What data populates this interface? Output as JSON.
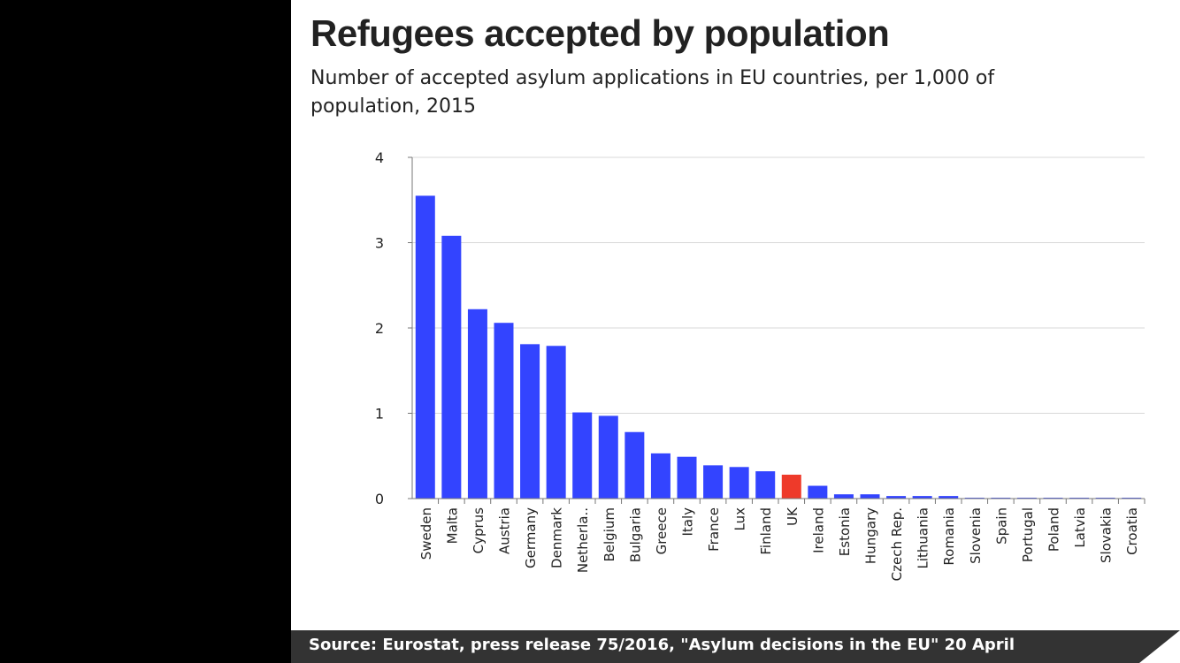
{
  "title": "Refugees accepted by population",
  "subtitle": "Number of accepted asylum applications in EU countries, per 1,000 of population, 2015",
  "source": {
    "label": "Source:",
    "text": "Eurostat, press release 75/2016, \"Asylum decisions in the EU\" 20 April"
  },
  "colors": {
    "default_bar": "#3344ff",
    "highlight_bar": "#ee3a2a",
    "grid": "#d8d8d8",
    "footer": "#333333"
  },
  "chart_data": {
    "type": "bar",
    "title": "Refugees accepted by population",
    "xlabel": "",
    "ylabel": "",
    "ylim": [
      0,
      4
    ],
    "yticks": [
      0,
      1,
      2,
      3,
      4
    ],
    "grid": true,
    "highlight": "UK",
    "categories": [
      "Sweden",
      "Malta",
      "Cyprus",
      "Austria",
      "Germany",
      "Denmark",
      "Netherla..",
      "Belgium",
      "Bulgaria",
      "Greece",
      "Italy",
      "France",
      "Lux",
      "Finland",
      "UK",
      "Ireland",
      "Estonia",
      "Hungary",
      "Czech Rep.",
      "Lithuania",
      "Romania",
      "Slovenia",
      "Spain",
      "Portugal",
      "Poland",
      "Latvia",
      "Slovakia",
      "Croatia"
    ],
    "values": [
      3.55,
      3.08,
      2.22,
      2.06,
      1.81,
      1.79,
      1.01,
      0.97,
      0.78,
      0.53,
      0.49,
      0.39,
      0.37,
      0.32,
      0.28,
      0.15,
      0.05,
      0.05,
      0.03,
      0.03,
      0.03,
      0.01,
      0.01,
      0.01,
      0.01,
      0.01,
      0.01,
      0.01
    ]
  }
}
